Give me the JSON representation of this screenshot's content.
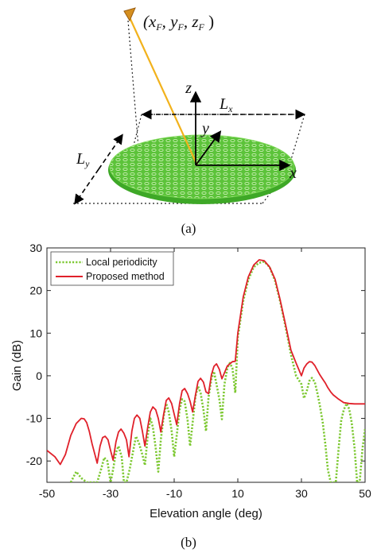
{
  "panel_a": {
    "feed_coordinates": "(x_F, y_F, z_F)",
    "dimension_x": "L_x",
    "dimension_y": "L_y",
    "axis_x": "x",
    "axis_y": "y",
    "axis_z": "z",
    "caption": "(a)",
    "colors": {
      "reflector": "#5cc33a",
      "feed_ray": "#f2b21c",
      "feed_horn": "#d58f1f"
    }
  },
  "panel_b_caption": "(b)",
  "chart_data": {
    "type": "line",
    "title": "",
    "xlabel": "Elevation angle (deg)",
    "ylabel": "Gain (dB)",
    "xlim": [
      -50,
      50
    ],
    "ylim": [
      -25,
      30
    ],
    "xticks": [
      -50,
      -30,
      -10,
      10,
      30,
      50
    ],
    "yticks": [
      30,
      20,
      10,
      0,
      -10,
      -20
    ],
    "grid": false,
    "legend_position": "top-left",
    "series": [
      {
        "name": "Local periodicity",
        "color": "#7dc832",
        "style": "dotted",
        "x": [
          -42.5,
          -40.8,
          -39.2,
          -37.5,
          -35.8,
          -34.2,
          -33,
          -32,
          -31,
          -30,
          -29.2,
          -28.3,
          -27.5,
          -26.5,
          -25.8,
          -25,
          -24,
          -23,
          -22,
          -21,
          -20,
          -19.2,
          -18.3,
          -17.5,
          -16.7,
          -15.8,
          -15,
          -14.2,
          -13.3,
          -12.5,
          -11.7,
          -10.8,
          -10,
          -9.2,
          -8.3,
          -7.5,
          -6.7,
          -5.8,
          -5,
          -4.2,
          -3.3,
          -2.5,
          -1.7,
          -0.8,
          0,
          0.8,
          1.7,
          2.5,
          3.3,
          4.2,
          5,
          5.8,
          6.7,
          7.5,
          8.3,
          9.2,
          10,
          11.7,
          13.3,
          15,
          16.7,
          18.3,
          20,
          21.7,
          23.3,
          25,
          26.7,
          28.3,
          30,
          30.8,
          31.7,
          32.5,
          33.3,
          34.2,
          35,
          35.8,
          36.7,
          37.5,
          38.3,
          39.2,
          40,
          40.8,
          41.7,
          42.5,
          43.3,
          44.2,
          45,
          45.8,
          46.7,
          47.5,
          48.3,
          49.2,
          50
        ],
        "values": [
          -25,
          -22.5,
          -24,
          -25,
          -25,
          -25,
          -22,
          -19.2,
          -20,
          -25,
          -22,
          -18,
          -16.5,
          -19,
          -25,
          -25,
          -22,
          -18,
          -14.2,
          -16,
          -18.5,
          -21,
          -14,
          -10,
          -12,
          -17,
          -22.5,
          -15,
          -9.5,
          -6.5,
          -8.5,
          -13,
          -19,
          -14,
          -8,
          -5.5,
          -6,
          -10.3,
          -16.5,
          -11,
          -4.8,
          -2.5,
          -4,
          -8,
          -13,
          -5,
          -0.8,
          1,
          -2,
          -5.5,
          -10.2,
          -2,
          1.8,
          3,
          1.8,
          -4,
          9,
          17.5,
          22.5,
          25.5,
          26.5,
          26.8,
          25.5,
          22.3,
          17.5,
          11.5,
          5,
          0,
          -2,
          -5.3,
          -3.5,
          -1.2,
          -0.5,
          -1.5,
          -4,
          -7,
          -11,
          -16,
          -22,
          -25,
          -25,
          -25,
          -17,
          -10.5,
          -8,
          -6.5,
          -7.8,
          -11,
          -17,
          -25,
          -25,
          -17,
          -12.5
        ]
      },
      {
        "name": "Proposed method",
        "color": "#e0202a",
        "style": "solid",
        "x": [
          -50,
          -47.5,
          -45.8,
          -44.2,
          -42.5,
          -40.8,
          -39.2,
          -38.3,
          -37.5,
          -36.7,
          -35.8,
          -34.2,
          -33.3,
          -32.5,
          -31.7,
          -30.8,
          -30,
          -29.2,
          -28.3,
          -27.5,
          -26.7,
          -25.8,
          -25,
          -24.2,
          -23.3,
          -22.5,
          -21.7,
          -20.8,
          -20,
          -19.2,
          -18.3,
          -17.5,
          -16.7,
          -15.8,
          -15,
          -14.2,
          -13.3,
          -12.5,
          -11.7,
          -10.8,
          -10,
          -9.2,
          -8.3,
          -7.5,
          -6.7,
          -5.8,
          -5,
          -4.2,
          -3.3,
          -2.5,
          -1.7,
          -0.8,
          0,
          0.8,
          1.7,
          2.5,
          3.3,
          4.2,
          5,
          5.8,
          6.7,
          7.5,
          8.3,
          9.2,
          10,
          11.7,
          13.3,
          15,
          16.7,
          18.3,
          20,
          21.7,
          23.3,
          25,
          26.7,
          28.3,
          30,
          30.8,
          31.7,
          32.5,
          33.3,
          34.2,
          35,
          35.8,
          36.7,
          37.5,
          38.3,
          39.2,
          40,
          41.7,
          43.3,
          45,
          46.7,
          48.3,
          50
        ],
        "values": [
          -17.5,
          -19,
          -20.8,
          -18.5,
          -14,
          -11.2,
          -10,
          -10.1,
          -11,
          -13,
          -16,
          -20.5,
          -16.5,
          -14.5,
          -14.2,
          -15,
          -17.5,
          -19.8,
          -15.5,
          -13.2,
          -12.5,
          -13.5,
          -15,
          -19,
          -13,
          -10,
          -9.2,
          -10,
          -13,
          -16.5,
          -12,
          -8.5,
          -7.3,
          -8,
          -10,
          -13.2,
          -9,
          -5.8,
          -5.2,
          -6.5,
          -9,
          -11.5,
          -6.5,
          -3.5,
          -3,
          -4.2,
          -6,
          -8.5,
          -4.5,
          -1.3,
          -0.6,
          -1.5,
          -3.8,
          -4.2,
          0.2,
          2.2,
          2.8,
          1.5,
          -0.7,
          0.7,
          2.3,
          2.8,
          3.3,
          3.4,
          10,
          18.5,
          23.2,
          26,
          27.2,
          27,
          25.5,
          22.7,
          17.8,
          12,
          6,
          3,
          0,
          1.8,
          2.8,
          3.3,
          3.2,
          2.4,
          1.3,
          0.2,
          -0.8,
          -1.7,
          -2.8,
          -3.8,
          -4.5,
          -5.5,
          -6.3,
          -6.5,
          -6.6,
          -6.6,
          -6.6
        ]
      }
    ]
  }
}
